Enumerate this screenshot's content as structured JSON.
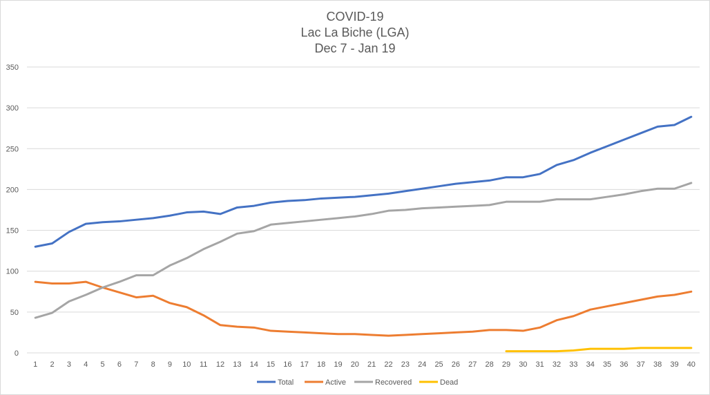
{
  "chart_data": {
    "type": "line",
    "title": [
      "COVID-19",
      "Lac La Biche (LGA)",
      "Dec 7 - Jan 19"
    ],
    "xlabel": "",
    "ylabel": "",
    "ylim": [
      0,
      350
    ],
    "yticks": [
      0,
      50,
      100,
      150,
      200,
      250,
      300,
      350
    ],
    "x": [
      1,
      2,
      3,
      4,
      5,
      6,
      7,
      8,
      9,
      10,
      11,
      12,
      13,
      14,
      15,
      16,
      17,
      18,
      19,
      20,
      21,
      22,
      23,
      24,
      25,
      26,
      27,
      28,
      29,
      30,
      31,
      32,
      33,
      34,
      35,
      36,
      37,
      38,
      39,
      40
    ],
    "grid": true,
    "legend_position": "bottom",
    "series": [
      {
        "name": "Total",
        "color": "#4472c4",
        "values": [
          130,
          134,
          148,
          158,
          160,
          161,
          163,
          165,
          168,
          172,
          173,
          170,
          178,
          180,
          184,
          186,
          187,
          189,
          190,
          191,
          193,
          195,
          198,
          201,
          204,
          207,
          209,
          211,
          215,
          215,
          219,
          230,
          236,
          245,
          253,
          261,
          269,
          277,
          279,
          289
        ]
      },
      {
        "name": "Active",
        "color": "#ed7d31",
        "values": [
          87,
          85,
          85,
          87,
          80,
          74,
          68,
          70,
          61,
          56,
          46,
          34,
          32,
          31,
          27,
          26,
          25,
          24,
          23,
          23,
          22,
          21,
          22,
          23,
          24,
          25,
          26,
          28,
          28,
          27,
          31,
          40,
          45,
          53,
          57,
          61,
          65,
          69,
          71,
          75
        ]
      },
      {
        "name": "Recovered",
        "color": "#a5a5a5",
        "values": [
          43,
          49,
          63,
          71,
          80,
          87,
          95,
          95,
          107,
          116,
          127,
          136,
          146,
          149,
          157,
          159,
          161,
          163,
          165,
          167,
          170,
          174,
          175,
          177,
          178,
          179,
          180,
          181,
          185,
          185,
          185,
          188,
          188,
          188,
          191,
          194,
          198,
          201,
          201,
          208
        ]
      },
      {
        "name": "Dead",
        "color": "#ffc000",
        "values": [
          null,
          null,
          null,
          null,
          null,
          null,
          null,
          null,
          null,
          null,
          null,
          null,
          null,
          null,
          null,
          null,
          null,
          null,
          null,
          null,
          null,
          null,
          null,
          null,
          null,
          null,
          null,
          null,
          2,
          2,
          2,
          2,
          3,
          5,
          5,
          5,
          6,
          6,
          6,
          6
        ]
      }
    ]
  }
}
